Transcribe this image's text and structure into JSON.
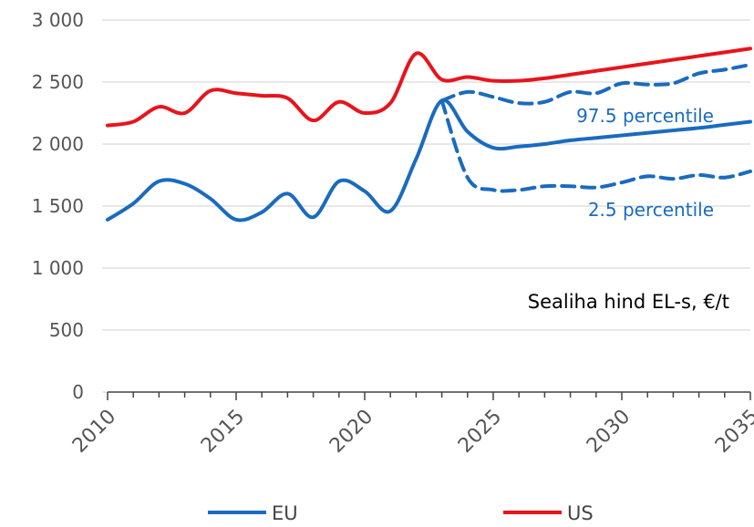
{
  "chart_data": {
    "type": "line",
    "annotation": "Sealiha hind EL-s, €/t",
    "xlim": [
      2010,
      2035
    ],
    "xticks": [
      2010,
      2015,
      2020,
      2025,
      2030,
      2035
    ],
    "xminorticks": [
      2011,
      2012,
      2013,
      2014,
      2016,
      2017,
      2018,
      2019,
      2021,
      2022,
      2023,
      2024,
      2026,
      2027,
      2028,
      2029,
      2031,
      2032,
      2033,
      2034
    ],
    "ylim": [
      0,
      3000
    ],
    "yticks": [
      0,
      500,
      {
        "value": 1000,
        "label": "1 000"
      },
      {
        "value": 1500,
        "label": "1 500"
      },
      {
        "value": 2000,
        "label": "2 000"
      },
      {
        "value": 2500,
        "label": "2 500"
      },
      {
        "value": 3000,
        "label": "3 000"
      }
    ],
    "grid": true,
    "legend": "bottom",
    "series": [
      {
        "name": "EU",
        "color": "#1a6bbf",
        "dashed": false,
        "in_legend": true,
        "x": [
          2010,
          2011,
          2012,
          2013,
          2014,
          2015,
          2016,
          2017,
          2018,
          2019,
          2020,
          2021,
          2022,
          2023,
          2024,
          2025,
          2026,
          2027,
          2028,
          2029,
          2030,
          2031,
          2032,
          2033,
          2034,
          2035
        ],
        "values": [
          1390,
          1520,
          1700,
          1680,
          1560,
          1390,
          1450,
          1600,
          1410,
          1700,
          1620,
          1460,
          1880,
          2350,
          2100,
          1970,
          1980,
          2000,
          2030,
          2050,
          2070,
          2090,
          2110,
          2130,
          2155,
          2180
        ]
      },
      {
        "name": "US",
        "color": "#e8141c",
        "dashed": false,
        "in_legend": true,
        "x": [
          2010,
          2011,
          2012,
          2013,
          2014,
          2015,
          2016,
          2017,
          2018,
          2019,
          2020,
          2021,
          2022,
          2023,
          2024,
          2025,
          2026,
          2027,
          2028,
          2029,
          2030,
          2031,
          2032,
          2033,
          2034,
          2035
        ],
        "values": [
          2150,
          2180,
          2300,
          2250,
          2430,
          2410,
          2390,
          2370,
          2190,
          2340,
          2250,
          2330,
          2730,
          2520,
          2540,
          2510,
          2510,
          2530,
          2560,
          2590,
          2620,
          2650,
          2680,
          2710,
          2740,
          2770
        ]
      },
      {
        "name": "97.5 percentile",
        "color": "#1a6bbf",
        "dashed": true,
        "in_legend": false,
        "x": [
          2023,
          2024,
          2025,
          2026,
          2027,
          2028,
          2029,
          2030,
          2031,
          2032,
          2033,
          2034,
          2035
        ],
        "values": [
          2350,
          2420,
          2380,
          2330,
          2340,
          2420,
          2410,
          2490,
          2480,
          2490,
          2570,
          2600,
          2640
        ]
      },
      {
        "name": "2.5 percentile",
        "color": "#1a6bbf",
        "dashed": true,
        "in_legend": false,
        "x": [
          2023,
          2024,
          2025,
          2026,
          2027,
          2028,
          2029,
          2030,
          2031,
          2032,
          2033,
          2034,
          2035
        ],
        "values": [
          2350,
          1730,
          1630,
          1630,
          1660,
          1660,
          1650,
          1690,
          1740,
          1720,
          1750,
          1730,
          1780
        ]
      }
    ]
  }
}
